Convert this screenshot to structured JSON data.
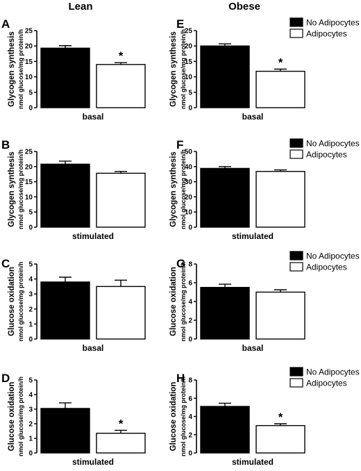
{
  "columns": [
    "Lean",
    "Obese"
  ],
  "chart_data": [
    {
      "type": "bar",
      "panel": "A",
      "group": "Lean",
      "title": "",
      "ylabel": "Glycogen synthesis",
      "ylabel_units": "nmol glucose/mg protein/h",
      "xlabel": "basal",
      "ylim": [
        0,
        25
      ],
      "yticks": [
        0,
        5,
        10,
        15,
        20,
        25
      ],
      "series": [
        {
          "name": "No Adipocytes",
          "value": 19.3,
          "error": 0.8,
          "color": "#000000"
        },
        {
          "name": "Adipocytes",
          "value": 14.0,
          "error": 0.6,
          "color": "#ffffff"
        }
      ],
      "significance": "*",
      "legend": false
    },
    {
      "type": "bar",
      "panel": "B",
      "group": "Lean",
      "title": "",
      "ylabel": "Glycogen synthesis",
      "ylabel_units": "nmol glucose/mg protein/h",
      "xlabel": "stimulated",
      "ylim": [
        0,
        25
      ],
      "yticks": [
        0,
        5,
        10,
        15,
        20,
        25
      ],
      "series": [
        {
          "name": "No Adipocytes",
          "value": 20.8,
          "error": 1.0,
          "color": "#000000"
        },
        {
          "name": "Adipocytes",
          "value": 17.8,
          "error": 0.6,
          "color": "#ffffff"
        }
      ],
      "significance": "",
      "legend": false
    },
    {
      "type": "bar",
      "panel": "C",
      "group": "Lean",
      "title": "",
      "ylabel": "Glucose oxidation",
      "ylabel_units": "nmol glucose/mg protein/h",
      "xlabel": "basal",
      "ylim": [
        0,
        5
      ],
      "yticks": [
        0,
        1,
        2,
        3,
        4,
        5
      ],
      "series": [
        {
          "name": "No Adipocytes",
          "value": 3.8,
          "error": 0.32,
          "color": "#000000"
        },
        {
          "name": "Adipocytes",
          "value": 3.5,
          "error": 0.42,
          "color": "#ffffff"
        }
      ],
      "significance": "",
      "legend": false
    },
    {
      "type": "bar",
      "panel": "D",
      "group": "Lean",
      "title": "",
      "ylabel": "Glucose oxidation",
      "ylabel_units": "nmol glucose/mg protein/h",
      "xlabel": "stimulated",
      "ylim": [
        0,
        5
      ],
      "yticks": [
        0,
        1,
        2,
        3,
        4,
        5
      ],
      "series": [
        {
          "name": "No Adipocytes",
          "value": 3.05,
          "error": 0.38,
          "color": "#000000"
        },
        {
          "name": "Adipocytes",
          "value": 1.35,
          "error": 0.2,
          "color": "#ffffff"
        }
      ],
      "significance": "*",
      "legend": false
    },
    {
      "type": "bar",
      "panel": "E",
      "group": "Obese",
      "title": "",
      "ylabel": "Glycogen synthesis",
      "ylabel_units": "nmol glucose/mg protein/h",
      "xlabel": "basal",
      "ylim": [
        0,
        25
      ],
      "yticks": [
        0,
        5,
        10,
        15,
        20,
        25
      ],
      "series": [
        {
          "name": "No Adipocytes",
          "value": 20.0,
          "error": 0.7,
          "color": "#000000"
        },
        {
          "name": "Adipocytes",
          "value": 11.8,
          "error": 0.7,
          "color": "#ffffff"
        }
      ],
      "significance": "*",
      "legend": true
    },
    {
      "type": "bar",
      "panel": "F",
      "group": "Obese",
      "title": "",
      "ylabel": "Glycogen synthesis",
      "ylabel_units": "nmol glucose/mg protein/h",
      "xlabel": "stimulated",
      "ylim": [
        0,
        50
      ],
      "yticks": [
        0,
        10,
        20,
        30,
        40,
        50
      ],
      "series": [
        {
          "name": "No Adipocytes",
          "value": 38.8,
          "error": 1.2,
          "color": "#000000"
        },
        {
          "name": "Adipocytes",
          "value": 36.8,
          "error": 1.0,
          "color": "#ffffff"
        }
      ],
      "significance": "",
      "legend": true
    },
    {
      "type": "bar",
      "panel": "G",
      "group": "Obese",
      "title": "",
      "ylabel": "Glucose oxidation",
      "ylabel_units": "nmol glucose/mg protein/h",
      "xlabel": "basal",
      "ylim": [
        0,
        8
      ],
      "yticks": [
        0,
        2,
        4,
        6,
        8
      ],
      "series": [
        {
          "name": "No Adipocytes",
          "value": 5.5,
          "error": 0.35,
          "color": "#000000"
        },
        {
          "name": "Adipocytes",
          "value": 5.0,
          "error": 0.25,
          "color": "#ffffff"
        }
      ],
      "significance": "",
      "legend": true
    },
    {
      "type": "bar",
      "panel": "H",
      "group": "Obese",
      "title": "",
      "ylabel": "Glucose oxidation",
      "ylabel_units": "nmol glucose/mg protein/h",
      "xlabel": "stimulated",
      "ylim": [
        0,
        8
      ],
      "yticks": [
        0,
        2,
        4,
        6,
        8
      ],
      "series": [
        {
          "name": "No Adipocytes",
          "value": 5.1,
          "error": 0.35,
          "color": "#000000"
        },
        {
          "name": "Adipocytes",
          "value": 3.0,
          "error": 0.2,
          "color": "#ffffff"
        }
      ],
      "significance": "*",
      "legend": true
    }
  ]
}
